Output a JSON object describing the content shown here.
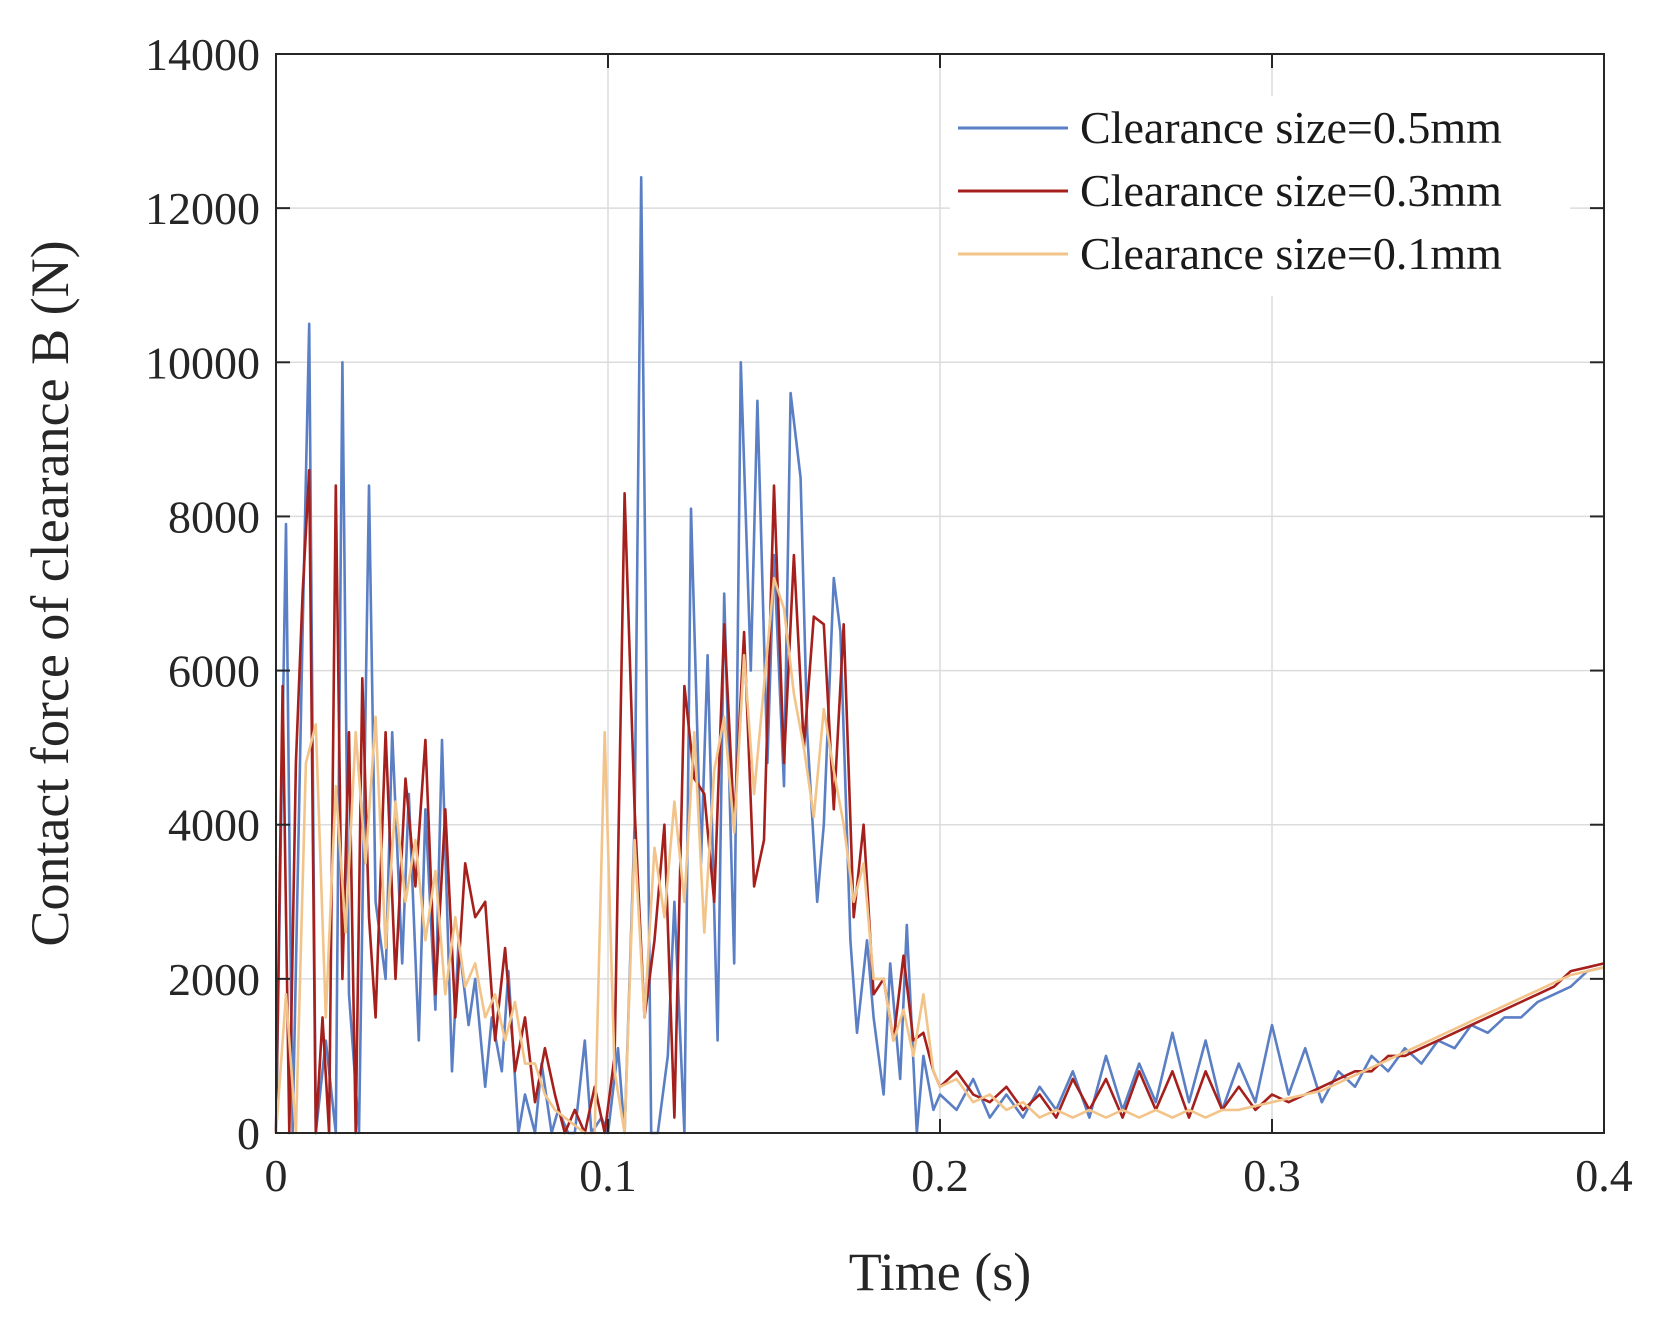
{
  "chart_data": {
    "type": "line",
    "title": "",
    "xlabel": "Time (s)",
    "ylabel": "Contact force of clearance B (N)",
    "xlim": [
      0,
      0.4
    ],
    "ylim": [
      0,
      14000
    ],
    "xticks": [
      0,
      0.1,
      0.2,
      0.3,
      0.4
    ],
    "xtick_labels": [
      "0",
      "0.1",
      "0.2",
      "0.3",
      "0.4"
    ],
    "yticks": [
      0,
      2000,
      4000,
      6000,
      8000,
      10000,
      12000,
      14000
    ],
    "ytick_labels": [
      "0",
      "2000",
      "4000",
      "6000",
      "8000",
      "10000",
      "12000",
      "14000"
    ],
    "grid": true,
    "legend_position": "top-right",
    "series": [
      {
        "name": "Clearance size=0.5mm",
        "color": "#5B7FC4",
        "x": [
          0,
          0.003,
          0.005,
          0.008,
          0.01,
          0.012,
          0.015,
          0.018,
          0.02,
          0.022,
          0.025,
          0.028,
          0.03,
          0.033,
          0.035,
          0.038,
          0.04,
          0.043,
          0.045,
          0.048,
          0.05,
          0.053,
          0.055,
          0.058,
          0.06,
          0.063,
          0.065,
          0.068,
          0.07,
          0.073,
          0.075,
          0.078,
          0.08,
          0.083,
          0.085,
          0.088,
          0.09,
          0.093,
          0.095,
          0.098,
          0.1,
          0.103,
          0.105,
          0.108,
          0.11,
          0.113,
          0.115,
          0.118,
          0.12,
          0.123,
          0.125,
          0.128,
          0.13,
          0.133,
          0.135,
          0.138,
          0.14,
          0.143,
          0.145,
          0.148,
          0.15,
          0.153,
          0.155,
          0.158,
          0.16,
          0.163,
          0.165,
          0.168,
          0.17,
          0.173,
          0.175,
          0.178,
          0.18,
          0.183,
          0.185,
          0.188,
          0.19,
          0.193,
          0.195,
          0.198,
          0.2,
          0.205,
          0.21,
          0.215,
          0.22,
          0.225,
          0.23,
          0.235,
          0.24,
          0.245,
          0.25,
          0.255,
          0.26,
          0.265,
          0.27,
          0.275,
          0.28,
          0.285,
          0.29,
          0.295,
          0.3,
          0.305,
          0.31,
          0.315,
          0.32,
          0.325,
          0.33,
          0.335,
          0.34,
          0.345,
          0.35,
          0.355,
          0.36,
          0.365,
          0.37,
          0.375,
          0.38,
          0.385,
          0.39,
          0.395,
          0.4
        ],
        "y": [
          0,
          7900,
          0,
          6500,
          10500,
          0,
          1200,
          0,
          10000,
          1800,
          0,
          8400,
          3000,
          2000,
          5200,
          2200,
          4400,
          1200,
          4200,
          1600,
          5100,
          800,
          2500,
          1400,
          2000,
          600,
          1500,
          800,
          2100,
          0,
          500,
          0,
          900,
          0,
          300,
          0,
          0,
          1200,
          0,
          200,
          0,
          1100,
          0,
          4000,
          12400,
          0,
          0,
          1000,
          3000,
          0,
          8100,
          3500,
          6200,
          1200,
          7000,
          2200,
          10000,
          6000,
          9500,
          4800,
          7500,
          4500,
          9600,
          8500,
          5200,
          3000,
          4000,
          7200,
          6500,
          2500,
          1300,
          2500,
          1500,
          500,
          2200,
          700,
          2700,
          0,
          1000,
          300,
          500,
          300,
          700,
          200,
          500,
          200,
          600,
          300,
          800,
          200,
          1000,
          300,
          900,
          400,
          1300,
          400,
          1200,
          300,
          900,
          400,
          1400,
          500,
          1100,
          400,
          800,
          600,
          1000,
          800,
          1100,
          900,
          1200,
          1100,
          1400,
          1300,
          1500,
          1500,
          1700,
          1800,
          1900,
          2100,
          2150
        ]
      },
      {
        "name": "Clearance size=0.3mm",
        "color": "#A5201C",
        "x": [
          0,
          0.002,
          0.004,
          0.006,
          0.008,
          0.01,
          0.012,
          0.014,
          0.016,
          0.018,
          0.02,
          0.022,
          0.024,
          0.026,
          0.028,
          0.03,
          0.033,
          0.036,
          0.039,
          0.042,
          0.045,
          0.048,
          0.051,
          0.054,
          0.057,
          0.06,
          0.063,
          0.066,
          0.069,
          0.072,
          0.075,
          0.078,
          0.081,
          0.084,
          0.087,
          0.09,
          0.093,
          0.096,
          0.099,
          0.102,
          0.105,
          0.108,
          0.111,
          0.114,
          0.117,
          0.12,
          0.123,
          0.126,
          0.129,
          0.132,
          0.135,
          0.138,
          0.141,
          0.144,
          0.147,
          0.15,
          0.153,
          0.156,
          0.159,
          0.162,
          0.165,
          0.168,
          0.171,
          0.174,
          0.177,
          0.18,
          0.183,
          0.186,
          0.189,
          0.192,
          0.195,
          0.198,
          0.2,
          0.205,
          0.21,
          0.215,
          0.22,
          0.225,
          0.23,
          0.235,
          0.24,
          0.245,
          0.25,
          0.255,
          0.26,
          0.265,
          0.27,
          0.275,
          0.28,
          0.285,
          0.29,
          0.295,
          0.3,
          0.305,
          0.31,
          0.315,
          0.32,
          0.325,
          0.33,
          0.335,
          0.34,
          0.345,
          0.35,
          0.355,
          0.36,
          0.365,
          0.37,
          0.375,
          0.38,
          0.385,
          0.39,
          0.395,
          0.4
        ],
        "y": [
          0,
          5800,
          0,
          4800,
          7000,
          8600,
          0,
          1500,
          0,
          8400,
          2000,
          5200,
          0,
          5900,
          2800,
          1500,
          5200,
          2000,
          4600,
          3200,
          5100,
          1800,
          4200,
          1500,
          3500,
          2800,
          3000,
          1200,
          2400,
          800,
          1500,
          400,
          1100,
          500,
          0,
          300,
          0,
          600,
          0,
          1000,
          8300,
          4200,
          1500,
          2500,
          4000,
          200,
          5800,
          4600,
          4400,
          3000,
          6600,
          4000,
          6500,
          3200,
          3800,
          8400,
          4800,
          7500,
          5000,
          6700,
          6600,
          4200,
          6600,
          2800,
          4000,
          1800,
          2000,
          1200,
          2300,
          1200,
          1300,
          800,
          600,
          800,
          500,
          400,
          600,
          300,
          500,
          200,
          700,
          300,
          700,
          200,
          800,
          300,
          800,
          200,
          800,
          300,
          600,
          300,
          500,
          400,
          500,
          600,
          700,
          800,
          800,
          1000,
          1000,
          1100,
          1200,
          1300,
          1400,
          1500,
          1600,
          1700,
          1800,
          1900,
          2100,
          2150,
          2200
        ]
      },
      {
        "name": "Clearance size=0.1mm",
        "color": "#F2C48A",
        "x": [
          0,
          0.003,
          0.006,
          0.009,
          0.012,
          0.015,
          0.018,
          0.021,
          0.024,
          0.027,
          0.03,
          0.033,
          0.036,
          0.039,
          0.042,
          0.045,
          0.048,
          0.051,
          0.054,
          0.057,
          0.06,
          0.063,
          0.066,
          0.069,
          0.072,
          0.075,
          0.078,
          0.081,
          0.084,
          0.087,
          0.09,
          0.093,
          0.096,
          0.099,
          0.102,
          0.105,
          0.108,
          0.111,
          0.114,
          0.117,
          0.12,
          0.123,
          0.126,
          0.129,
          0.132,
          0.135,
          0.138,
          0.141,
          0.144,
          0.147,
          0.15,
          0.153,
          0.156,
          0.159,
          0.162,
          0.165,
          0.168,
          0.171,
          0.174,
          0.177,
          0.18,
          0.183,
          0.186,
          0.189,
          0.192,
          0.195,
          0.198,
          0.2,
          0.205,
          0.21,
          0.215,
          0.22,
          0.225,
          0.23,
          0.235,
          0.24,
          0.245,
          0.25,
          0.255,
          0.26,
          0.265,
          0.27,
          0.275,
          0.28,
          0.285,
          0.29,
          0.295,
          0.3,
          0.305,
          0.31,
          0.315,
          0.32,
          0.325,
          0.33,
          0.335,
          0.34,
          0.345,
          0.35,
          0.355,
          0.36,
          0.365,
          0.37,
          0.375,
          0.38,
          0.385,
          0.39,
          0.395,
          0.4
        ],
        "y": [
          0,
          1800,
          0,
          4800,
          5300,
          1500,
          4500,
          2600,
          5200,
          3500,
          5400,
          2400,
          4300,
          3000,
          3800,
          2500,
          3400,
          1800,
          2800,
          1900,
          2200,
          1500,
          1800,
          1200,
          1700,
          900,
          900,
          500,
          300,
          200,
          100,
          0,
          0,
          5200,
          800,
          0,
          3800,
          1500,
          3700,
          2800,
          4300,
          3000,
          5200,
          2600,
          4700,
          5400,
          3900,
          6200,
          4400,
          5800,
          7200,
          6800,
          5700,
          5000,
          4100,
          5500,
          4700,
          4000,
          3000,
          3500,
          2000,
          2000,
          1200,
          1600,
          1000,
          1800,
          800,
          600,
          700,
          400,
          500,
          300,
          400,
          200,
          300,
          200,
          300,
          200,
          300,
          200,
          300,
          200,
          300,
          200,
          300,
          300,
          350,
          400,
          450,
          500,
          550,
          650,
          750,
          850,
          950,
          1050,
          1150,
          1250,
          1350,
          1450,
          1550,
          1650,
          1750,
          1850,
          1950,
          2050,
          2100,
          2150
        ]
      }
    ]
  }
}
